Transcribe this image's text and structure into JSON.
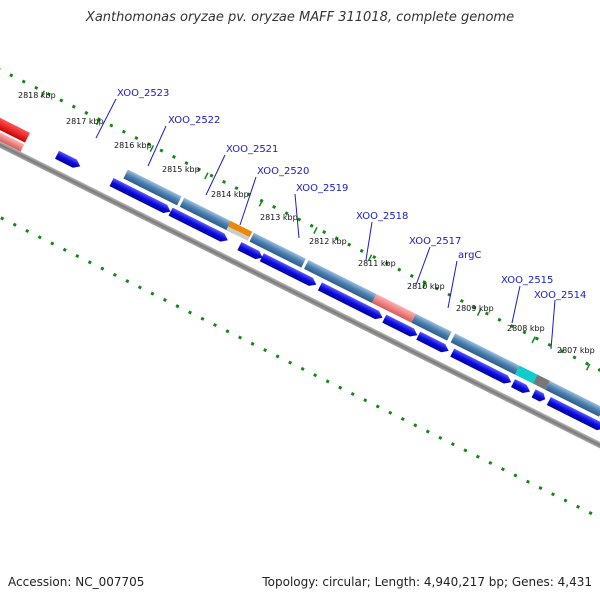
{
  "title": "Xanthomonas oryzae pv. oryzae MAFF 311018, complete genome",
  "footer": {
    "accession": "Accession: NC_007705",
    "summary": "Topology: circular; Length: 4,940,217 bp; Genes: 4,431"
  },
  "kbp_ticks": [
    "2818 kbp",
    "2817 kbp",
    "2816 kbp",
    "2815 kbp",
    "2814 kbp",
    "2813 kbp",
    "2812 kbp",
    "2811 kbp",
    "2810 kbp",
    "2809 kbp",
    "2808 kbp",
    "2807 kbp"
  ],
  "gene_labels": [
    "XOO_2523",
    "XOO_2522",
    "XOO_2521",
    "XOO_2520",
    "XOO_2519",
    "XOO_2518",
    "XOO_2517",
    "argC",
    "XOO_2515",
    "XOO_2514"
  ],
  "colors": {
    "cds": "#4a7fb0",
    "gene": "#0b0bdd",
    "rna_red": "#ee1111",
    "pink": "#ee7777",
    "orange": "#ee8800",
    "cyan": "#11cccc",
    "gray": "#777777",
    "ruler": "#118811",
    "backbone": "#888888"
  }
}
